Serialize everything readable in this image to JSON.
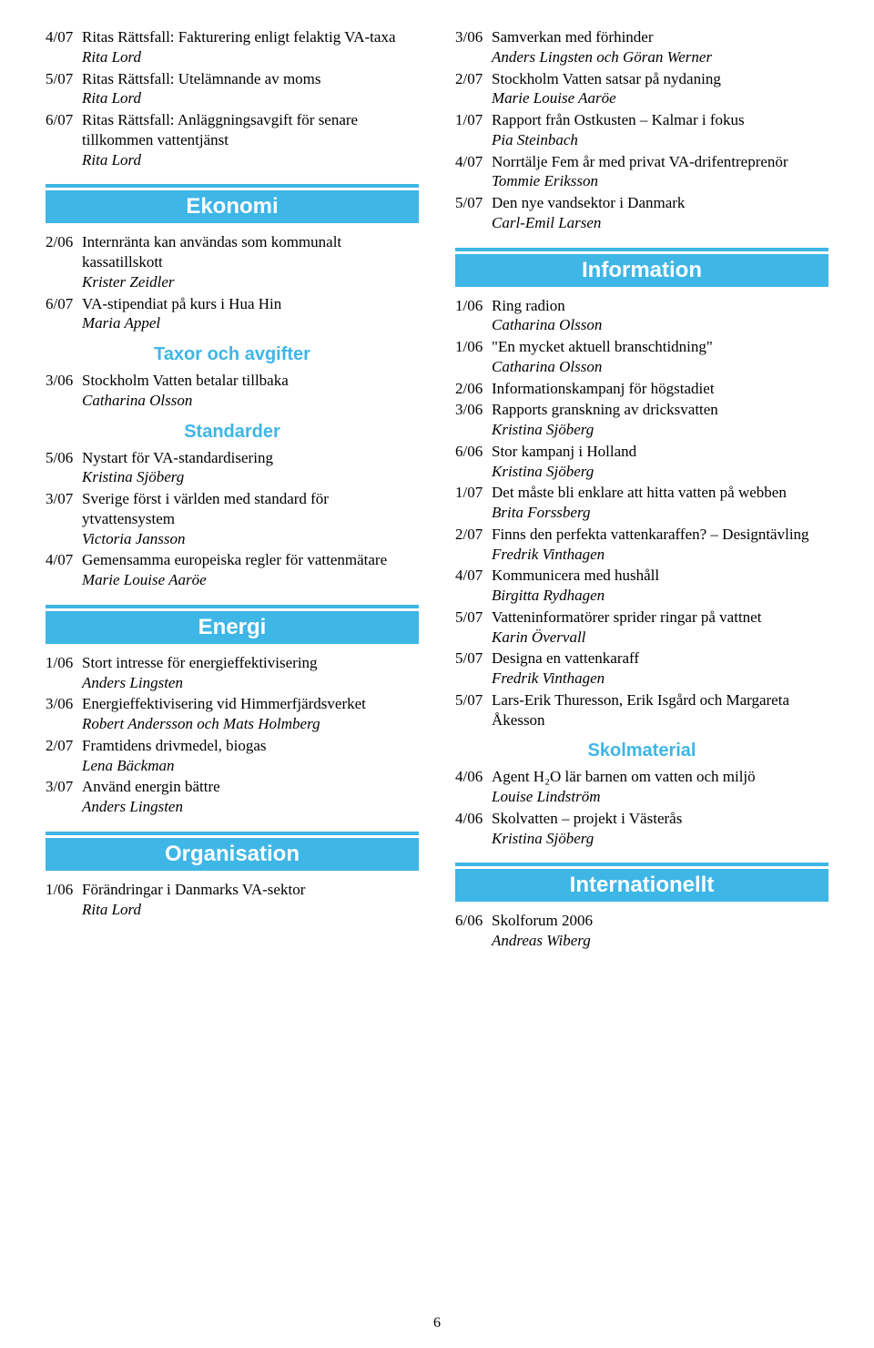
{
  "colors": {
    "accent": "#3eb6e6",
    "text": "#000000",
    "bg": "#ffffff"
  },
  "page_number": "6",
  "left": {
    "top_entries": [
      {
        "issue": "4/07",
        "title": "Ritas Rättsfall: Fakturering enligt felaktig VA-taxa",
        "author": "Rita Lord"
      },
      {
        "issue": "5/07",
        "title": "Ritas Rättsfall: Utelämnande av moms",
        "author": "Rita Lord"
      },
      {
        "issue": "6/07",
        "title": "Ritas Rättsfall: Anläggningsavgift för senare tillkommen vattentjänst",
        "author": "Rita Lord"
      }
    ],
    "ekonomi_label": "Ekonomi",
    "ekonomi_entries": [
      {
        "issue": "2/06",
        "title": "Internränta kan användas som kommunalt kassatillskott",
        "author": "Krister Zeidler"
      },
      {
        "issue": "6/07",
        "title": "VA-stipendiat på kurs i Hua Hin",
        "author": "Maria Appel"
      }
    ],
    "taxor_label": "Taxor och avgifter",
    "taxor_entries": [
      {
        "issue": "3/06",
        "title": "Stockholm Vatten betalar tillbaka",
        "author": "Catharina Olsson"
      }
    ],
    "standarder_label": "Standarder",
    "standarder_entries": [
      {
        "issue": "5/06",
        "title": "Nystart för VA-standardisering",
        "author": "Kristina Sjöberg"
      },
      {
        "issue": "3/07",
        "title": "Sverige först i världen med standard för ytvattensystem",
        "author": "Victoria Jansson"
      },
      {
        "issue": "4/07",
        "title": "Gemensamma europeiska regler för vattenmätare",
        "author": "Marie Louise Aaröe"
      }
    ],
    "energi_label": "Energi",
    "energi_entries": [
      {
        "issue": "1/06",
        "title": "Stort intresse för energieffektivisering",
        "author": "Anders Lingsten"
      },
      {
        "issue": "3/06",
        "title": "Energieffektivisering vid Himmerfjärds­verket",
        "author": "Robert Andersson och Mats Holmberg"
      },
      {
        "issue": "2/07",
        "title": "Framtidens drivmedel, biogas",
        "author": "Lena Bäckman"
      },
      {
        "issue": "3/07",
        "title": "Använd energin bättre",
        "author": "Anders Lingsten"
      }
    ],
    "organisation_label": "Organisation",
    "organisation_entries": [
      {
        "issue": "1/06",
        "title": "Förändringar i Danmarks VA-sektor",
        "author": "Rita Lord"
      }
    ]
  },
  "right": {
    "top_entries": [
      {
        "issue": "3/06",
        "title": "Samverkan med förhinder",
        "author": "Anders Lingsten och Göran Werner"
      },
      {
        "issue": "2/07",
        "title": "Stockholm Vatten satsar på nydaning",
        "author": "Marie Louise Aaröe"
      },
      {
        "issue": "1/07",
        "title": "Rapport från Ostkusten – Kalmar i fokus",
        "author": "Pia Steinbach"
      },
      {
        "issue": "4/07",
        "title": "Norrtälje Fem år med privat VA-drifentreprenör",
        "author": "Tommie Eriksson"
      },
      {
        "issue": "5/07",
        "title": "Den nye vandsektor i Danmark",
        "author": "Carl-Emil Larsen"
      }
    ],
    "information_label": "Information",
    "information_entries": [
      {
        "issue": "1/06",
        "title": "Ring radion",
        "author": "Catharina Olsson"
      },
      {
        "issue": "1/06",
        "title": "\"En mycket aktuell branschtidning\"",
        "author": "Catharina Olsson"
      },
      {
        "issue": "2/06",
        "title": "Informationskampanj för högstadiet",
        "author": ""
      },
      {
        "issue": "3/06",
        "title": "Rapports granskning av dricksvatten",
        "author": "Kristina Sjöberg"
      },
      {
        "issue": "6/06",
        "title": "Stor kampanj i Holland",
        "author": "Kristina Sjöberg"
      },
      {
        "issue": "1/07",
        "title": "Det måste bli enklare att hitta vatten på webben",
        "author": "Brita Forssberg"
      },
      {
        "issue": "2/07",
        "title": "Finns den perfekta vattenkaraffen? – Designtävling",
        "author": "Fredrik Vinthagen"
      },
      {
        "issue": "4/07",
        "title": "Kommunicera med hushåll",
        "author": "Birgitta Rydhagen"
      },
      {
        "issue": "5/07",
        "title": "Vatteninformatörer sprider ringar på vattnet",
        "author": "Karin Övervall"
      },
      {
        "issue": "5/07",
        "title": "Designa en vattenkaraff",
        "author": "Fredrik Vinthagen"
      },
      {
        "issue": "5/07",
        "title": "Lars-Erik Thuresson, Erik Isgård och Margareta Åkesson",
        "author": ""
      }
    ],
    "skolmaterial_label": "Skolmaterial",
    "skolmaterial_entries": [
      {
        "issue": "4/06",
        "title": "Agent H₂O lär barnen om vatten och miljö",
        "author": "Louise Lindström"
      },
      {
        "issue": "4/06",
        "title": "Skolvatten – projekt i Västerås",
        "author": "Kristina Sjöberg"
      }
    ],
    "internationellt_label": "Internationellt",
    "internationellt_entries": [
      {
        "issue": "6/06",
        "title": "Skolforum 2006",
        "author": "Andreas Wiberg"
      }
    ]
  }
}
